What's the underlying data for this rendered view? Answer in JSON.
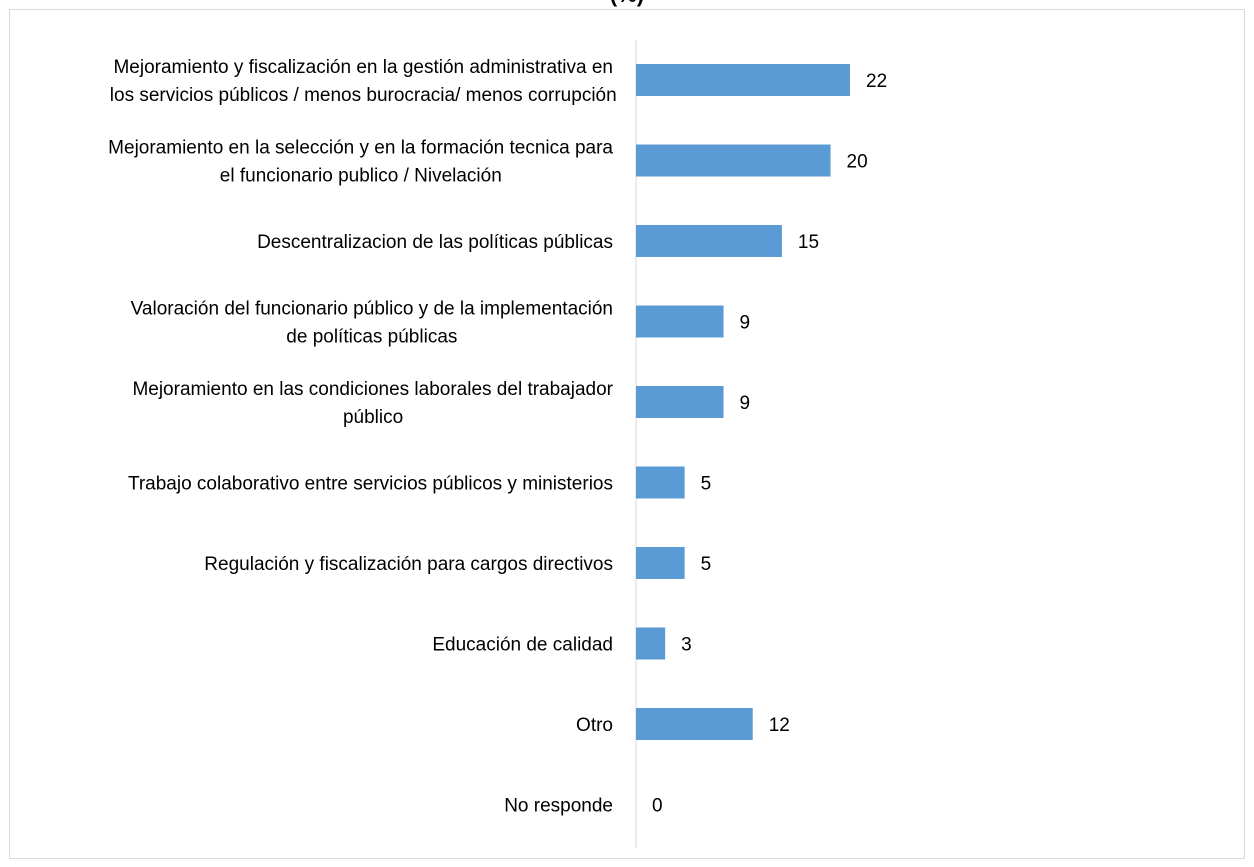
{
  "chart_data": {
    "type": "bar",
    "orientation": "horizontal",
    "title": "(%)",
    "xlabel": "",
    "ylabel": "",
    "xlim": [
      0,
      22
    ],
    "grid": false,
    "legend": "none",
    "bar_color": "#5b9bd5",
    "categories": [
      [
        "Mejoramiento y fiscalización en la gestión administrativa en",
        "los servicios públicos / menos burocracia/ menos corrupción"
      ],
      [
        "Mejoramiento en la selección y en la formación tecnica para",
        "el funcionario publico / Nivelación"
      ],
      [
        "Descentralizacion de las políticas públicas"
      ],
      [
        "Valoración del funcionario público y de la implementación",
        "de políticas públicas"
      ],
      [
        "Mejoramiento en las condiciones laborales del trabajador",
        "público"
      ],
      [
        "Trabajo colaborativo entre servicios públicos y ministerios"
      ],
      [
        "Regulación y fiscalización para cargos directivos"
      ],
      [
        "Educación de calidad"
      ],
      [
        "Otro"
      ],
      [
        "No responde"
      ]
    ],
    "values": [
      22,
      20,
      15,
      9,
      9,
      5,
      5,
      3,
      12,
      0
    ]
  }
}
